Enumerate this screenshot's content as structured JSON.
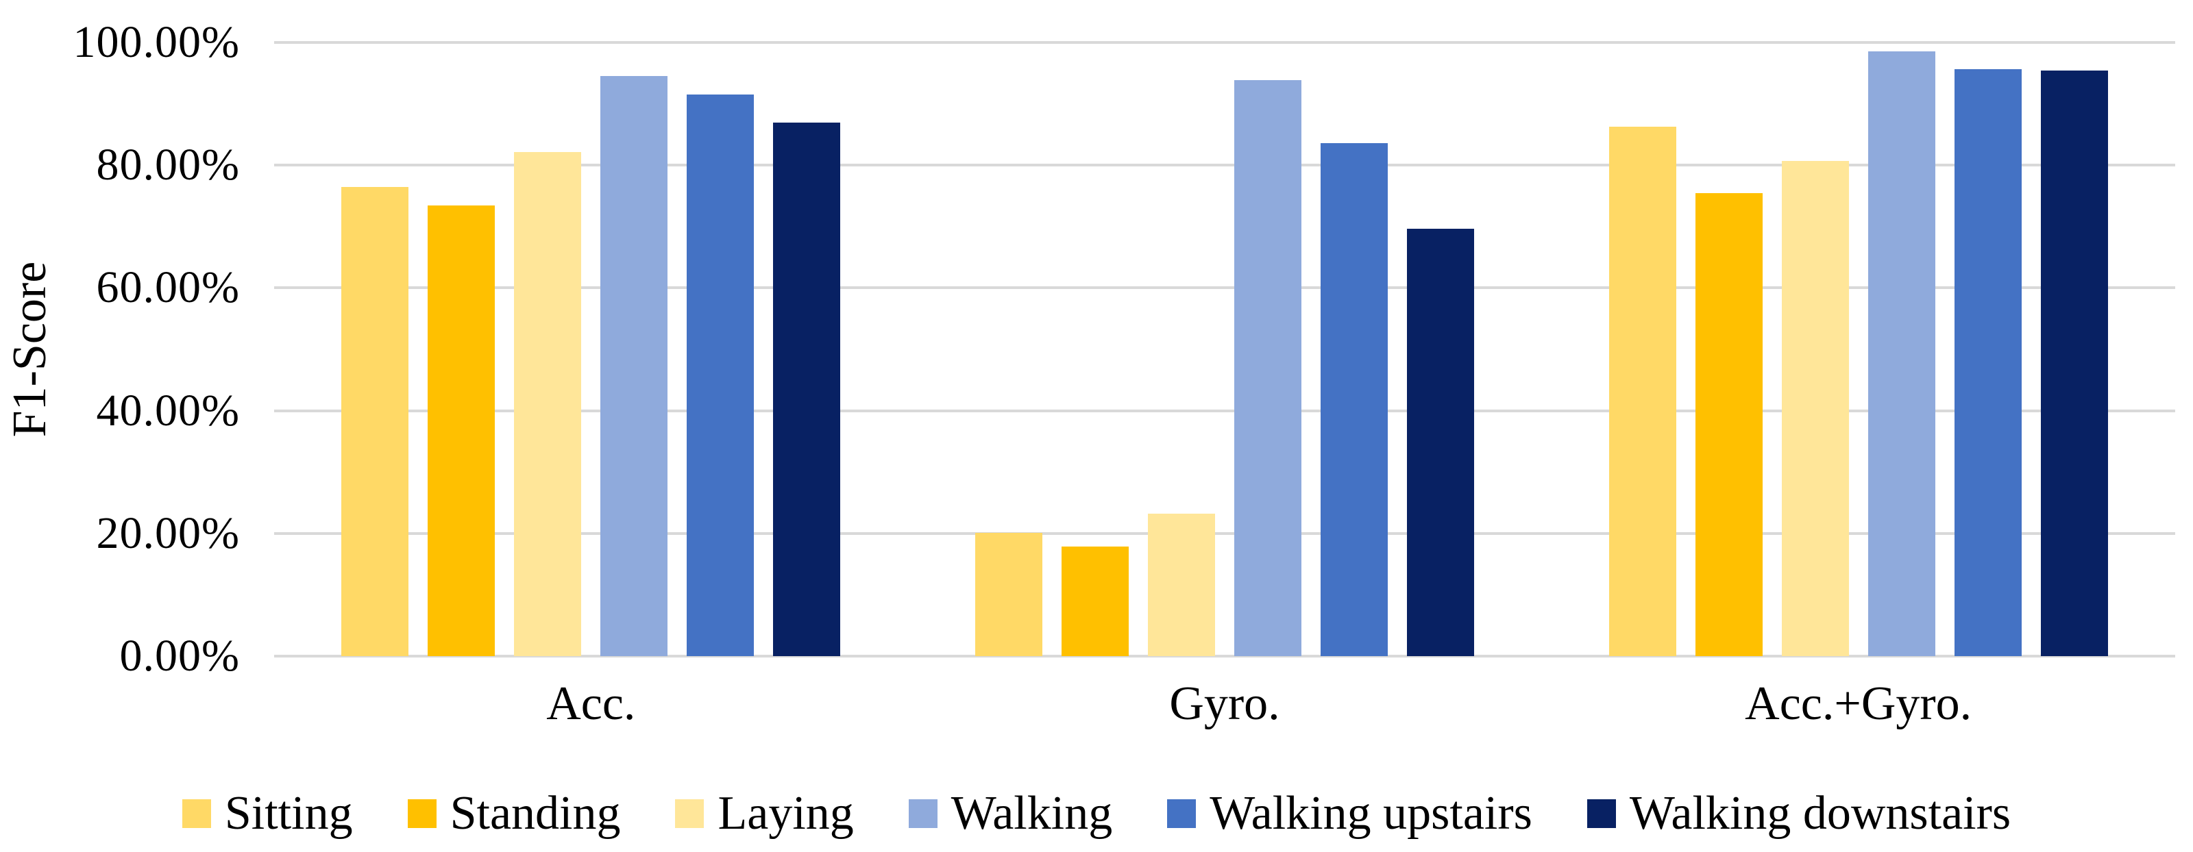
{
  "chart_data": {
    "type": "bar",
    "title": "",
    "xlabel": "",
    "ylabel": "F1-Score",
    "categories": [
      "Acc.",
      "Gyro.",
      "Acc.+Gyro."
    ],
    "series": [
      {
        "name": "Sitting",
        "color": "#FFD966",
        "values": [
          76.5,
          20.1,
          86.3
        ]
      },
      {
        "name": "Standing",
        "color": "#FFC000",
        "values": [
          73.4,
          17.9,
          75.4
        ]
      },
      {
        "name": "Laying",
        "color": "#FFE699",
        "values": [
          82.2,
          23.2,
          80.7
        ]
      },
      {
        "name": "Walking",
        "color": "#8FAADC",
        "values": [
          94.5,
          93.9,
          98.5
        ]
      },
      {
        "name": "Walking upstairs",
        "color": "#4472C4",
        "values": [
          91.5,
          83.6,
          95.6
        ]
      },
      {
        "name": "Walking downstairs",
        "color": "#082163",
        "values": [
          86.9,
          69.7,
          95.4
        ]
      }
    ],
    "y_axis": {
      "min": 0,
      "max": 100,
      "tick_step": 20,
      "tick_labels": [
        "100.00%",
        "80.00%",
        "60.00%",
        "40.00%",
        "20.00%",
        "0.00%"
      ]
    },
    "grid": true,
    "gridline_color": "#D9D9D9",
    "legend_position": "bottom",
    "background": "#FFFFFF"
  }
}
